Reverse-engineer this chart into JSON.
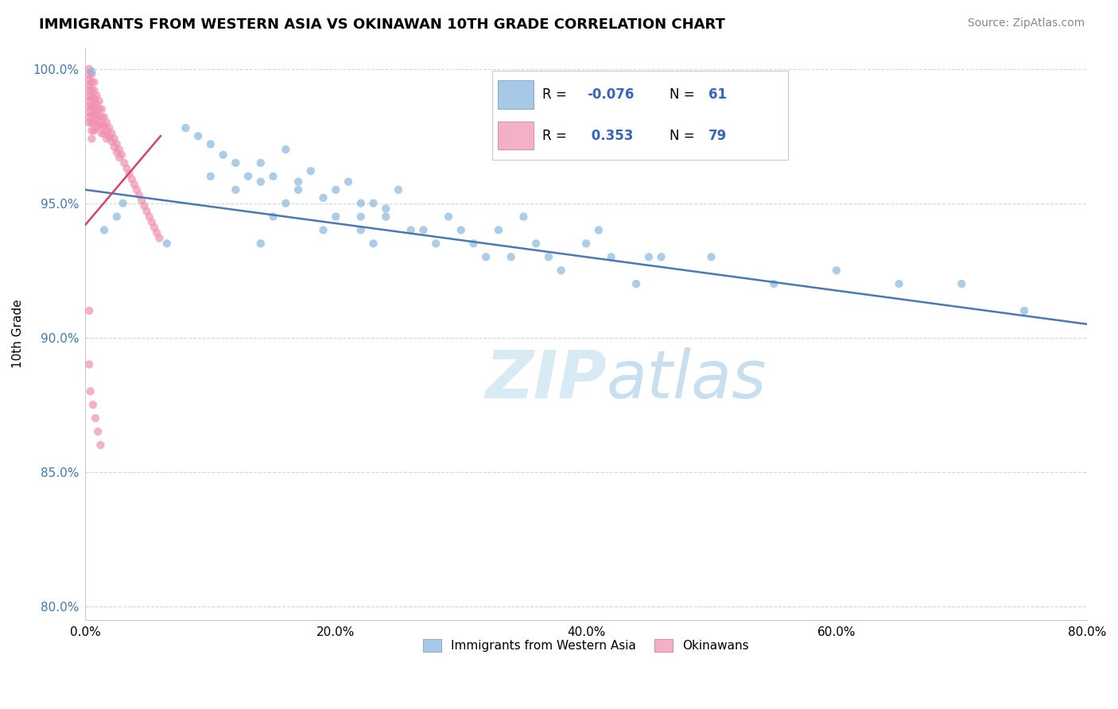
{
  "title": "IMMIGRANTS FROM WESTERN ASIA VS OKINAWAN 10TH GRADE CORRELATION CHART",
  "source_text": "Source: ZipAtlas.com",
  "ylabel": "10th Grade",
  "xlim": [
    0.0,
    0.8
  ],
  "ylim": [
    0.795,
    1.008
  ],
  "xtick_labels": [
    "0.0%",
    "20.0%",
    "40.0%",
    "60.0%",
    "80.0%"
  ],
  "xtick_values": [
    0.0,
    0.2,
    0.4,
    0.6,
    0.8
  ],
  "ytick_labels": [
    "80.0%",
    "85.0%",
    "90.0%",
    "95.0%",
    "100.0%"
  ],
  "ytick_values": [
    0.8,
    0.85,
    0.9,
    0.95,
    1.0
  ],
  "legend_items": [
    {
      "label": "Immigrants from Western Asia",
      "color": "#a8c8e8",
      "R": "-0.076",
      "N": "61"
    },
    {
      "label": "Okinawans",
      "color": "#f4b0c4",
      "R": "0.353",
      "N": "79"
    }
  ],
  "blue_scatter_x": [
    0.005,
    0.08,
    0.09,
    0.1,
    0.11,
    0.1,
    0.12,
    0.13,
    0.14,
    0.12,
    0.14,
    0.15,
    0.16,
    0.17,
    0.15,
    0.16,
    0.17,
    0.18,
    0.19,
    0.2,
    0.21,
    0.22,
    0.19,
    0.2,
    0.22,
    0.23,
    0.24,
    0.25,
    0.26,
    0.22,
    0.23,
    0.24,
    0.27,
    0.28,
    0.29,
    0.3,
    0.31,
    0.32,
    0.33,
    0.34,
    0.35,
    0.36,
    0.37,
    0.38,
    0.4,
    0.42,
    0.44,
    0.46,
    0.41,
    0.45,
    0.5,
    0.55,
    0.6,
    0.65,
    0.7,
    0.75,
    0.015,
    0.025,
    0.03,
    0.065,
    0.14
  ],
  "blue_scatter_y": [
    0.999,
    0.978,
    0.975,
    0.972,
    0.968,
    0.96,
    0.965,
    0.96,
    0.965,
    0.955,
    0.958,
    0.96,
    0.97,
    0.958,
    0.945,
    0.95,
    0.955,
    0.962,
    0.94,
    0.955,
    0.958,
    0.95,
    0.952,
    0.945,
    0.945,
    0.95,
    0.948,
    0.955,
    0.94,
    0.94,
    0.935,
    0.945,
    0.94,
    0.935,
    0.945,
    0.94,
    0.935,
    0.93,
    0.94,
    0.93,
    0.945,
    0.935,
    0.93,
    0.925,
    0.935,
    0.93,
    0.92,
    0.93,
    0.94,
    0.93,
    0.93,
    0.92,
    0.925,
    0.92,
    0.92,
    0.91,
    0.94,
    0.945,
    0.95,
    0.935,
    0.935
  ],
  "pink_scatter_x": [
    0.003,
    0.003,
    0.003,
    0.003,
    0.003,
    0.003,
    0.003,
    0.003,
    0.003,
    0.003,
    0.003,
    0.005,
    0.005,
    0.005,
    0.005,
    0.005,
    0.005,
    0.005,
    0.005,
    0.005,
    0.007,
    0.007,
    0.007,
    0.007,
    0.007,
    0.007,
    0.007,
    0.009,
    0.009,
    0.009,
    0.009,
    0.009,
    0.011,
    0.011,
    0.011,
    0.011,
    0.013,
    0.013,
    0.013,
    0.013,
    0.015,
    0.015,
    0.015,
    0.017,
    0.017,
    0.017,
    0.019,
    0.019,
    0.021,
    0.021,
    0.023,
    0.023,
    0.025,
    0.025,
    0.027,
    0.027,
    0.029,
    0.031,
    0.033,
    0.035,
    0.037,
    0.039,
    0.041,
    0.043,
    0.045,
    0.047,
    0.049,
    0.051,
    0.053,
    0.055,
    0.057,
    0.059,
    0.003,
    0.003,
    0.004,
    0.006,
    0.008,
    0.01,
    0.012
  ],
  "pink_scatter_y": [
    1.0,
    0.998,
    0.996,
    0.994,
    0.992,
    0.99,
    0.988,
    0.986,
    0.984,
    0.982,
    0.98,
    0.998,
    0.995,
    0.992,
    0.989,
    0.986,
    0.983,
    0.98,
    0.977,
    0.974,
    0.995,
    0.992,
    0.989,
    0.986,
    0.983,
    0.98,
    0.977,
    0.99,
    0.987,
    0.984,
    0.981,
    0.978,
    0.988,
    0.985,
    0.982,
    0.979,
    0.985,
    0.982,
    0.979,
    0.976,
    0.982,
    0.979,
    0.976,
    0.98,
    0.977,
    0.974,
    0.978,
    0.975,
    0.976,
    0.973,
    0.974,
    0.971,
    0.972,
    0.969,
    0.97,
    0.967,
    0.968,
    0.965,
    0.963,
    0.961,
    0.959,
    0.957,
    0.955,
    0.953,
    0.951,
    0.949,
    0.947,
    0.945,
    0.943,
    0.941,
    0.939,
    0.937,
    0.91,
    0.89,
    0.88,
    0.875,
    0.87,
    0.865,
    0.86
  ],
  "blue_trend_x": [
    0.0,
    0.8
  ],
  "blue_trend_y": [
    0.955,
    0.905
  ],
  "pink_trend_x": [
    0.0,
    0.06
  ],
  "pink_trend_y": [
    0.942,
    0.975
  ],
  "dot_size": 55,
  "blue_color": "#89b8de",
  "pink_color": "#f090b0",
  "blue_edge": "none",
  "pink_edge": "none",
  "trend_blue_color": "#4878b8",
  "trend_pink_color": "#d84070",
  "watermark_color": "#d8eaf4",
  "grid_color": "#cccccc",
  "legend_R_color": "#3565c0",
  "legend_N_color": "#3565c0"
}
